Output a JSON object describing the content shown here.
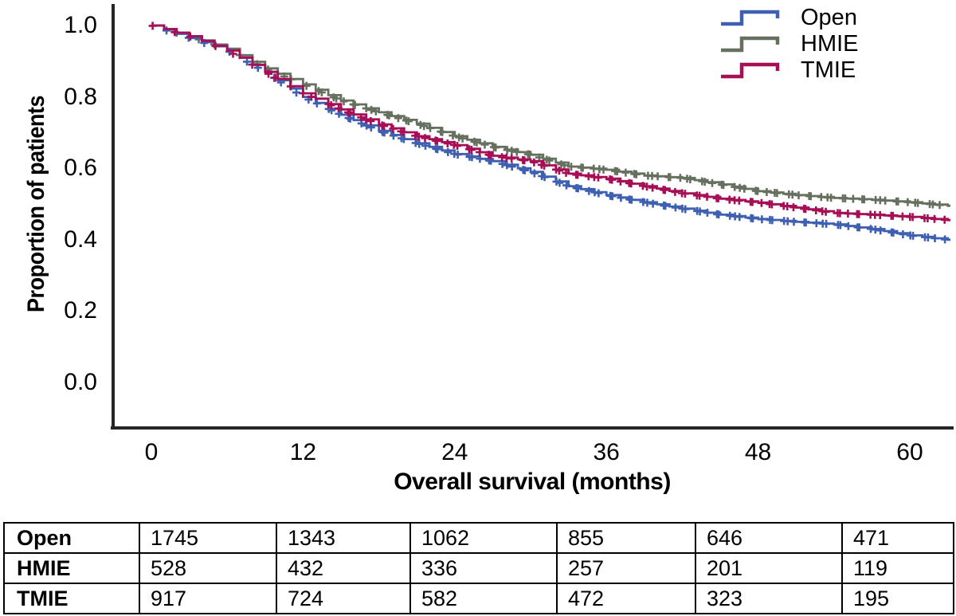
{
  "y_axis": {
    "title": "Proportion of patients",
    "ticks": [
      "1.0",
      "0.8",
      "0.6",
      "0.4",
      "0.2",
      "0.0"
    ]
  },
  "x_axis": {
    "title": "Overall survival (months)",
    "ticks": [
      "0",
      "12",
      "24",
      "36",
      "48",
      "60"
    ]
  },
  "legend": {
    "items": [
      {
        "label": "Open",
        "color": "#3E60B2"
      },
      {
        "label": "HMIE",
        "color": "#66705F"
      },
      {
        "label": "TMIE",
        "color": "#A60F55"
      }
    ]
  },
  "risk_table": {
    "rows": [
      {
        "label": "Open",
        "counts": [
          "1745",
          "1343",
          "1062",
          "855",
          "646",
          "471"
        ]
      },
      {
        "label": "HMIE",
        "counts": [
          "528",
          "432",
          "336",
          "257",
          "201",
          "119"
        ]
      },
      {
        "label": "TMIE",
        "counts": [
          "917",
          "724",
          "582",
          "472",
          "323",
          "195"
        ]
      }
    ]
  },
  "chart_data": {
    "type": "line",
    "subtype": "kaplan-meier-step-curves-with-censor-marks",
    "title": "",
    "xlabel": "Overall survival (months)",
    "ylabel": "Proportion of patients",
    "xlim": [
      0,
      63
    ],
    "ylim": [
      0.0,
      1.0
    ],
    "x_tick_values": [
      0,
      12,
      24,
      36,
      48,
      60
    ],
    "y_tick_values": [
      1.0,
      0.8,
      0.6,
      0.4,
      0.2,
      0.0
    ],
    "legend_position": "top-right",
    "grid": false,
    "x_months": [
      0,
      3,
      6,
      9,
      12,
      15,
      18,
      21,
      24,
      27,
      30,
      33,
      36,
      39,
      42,
      45,
      48,
      51,
      54,
      57,
      60,
      63
    ],
    "series": [
      {
        "name": "Open",
        "color": "#3E60B2",
        "values": [
          1.0,
          0.965,
          0.93,
          0.87,
          0.8,
          0.75,
          0.705,
          0.67,
          0.64,
          0.62,
          0.59,
          0.55,
          0.525,
          0.505,
          0.487,
          0.47,
          0.458,
          0.45,
          0.443,
          0.43,
          0.412,
          0.4
        ]
      },
      {
        "name": "HMIE",
        "color": "#66705F",
        "values": [
          1.0,
          0.97,
          0.935,
          0.88,
          0.835,
          0.79,
          0.757,
          0.725,
          0.69,
          0.66,
          0.638,
          0.605,
          0.596,
          0.58,
          0.573,
          0.555,
          0.536,
          0.525,
          0.517,
          0.512,
          0.505,
          0.495
        ]
      },
      {
        "name": "TMIE",
        "color": "#A60F55",
        "values": [
          1.0,
          0.97,
          0.93,
          0.87,
          0.81,
          0.765,
          0.723,
          0.69,
          0.665,
          0.635,
          0.62,
          0.585,
          0.571,
          0.55,
          0.53,
          0.515,
          0.504,
          0.49,
          0.475,
          0.47,
          0.464,
          0.455
        ]
      }
    ],
    "numbers_at_risk": {
      "times": [
        0,
        12,
        24,
        36,
        48,
        60
      ],
      "Open": [
        1745,
        1343,
        1062,
        855,
        646,
        471
      ],
      "HMIE": [
        528,
        432,
        336,
        257,
        201,
        119
      ],
      "TMIE": [
        917,
        724,
        582,
        472,
        323,
        195
      ]
    }
  }
}
